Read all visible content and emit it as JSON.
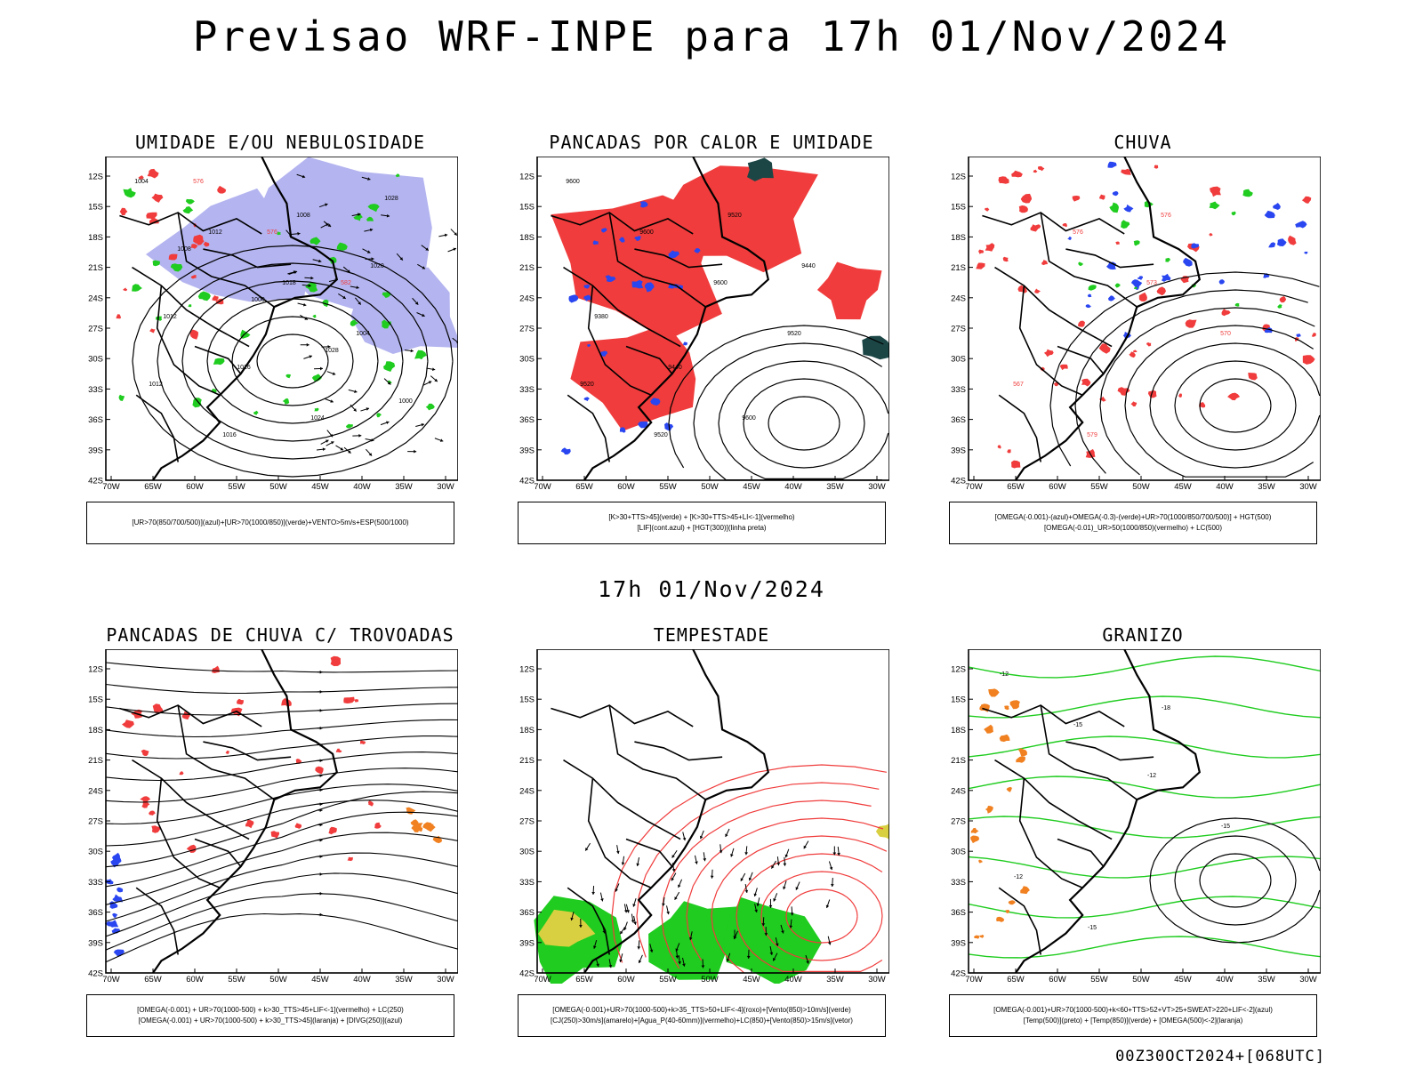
{
  "title": "Previsao WRF-INPE  para 17h 01/Nov/2024",
  "subtitle": "17h 01/Nov/2024",
  "footer": "00Z30OCT2024+[068UTC]",
  "axes": {
    "lat_labels": [
      "12S",
      "15S",
      "18S",
      "21S",
      "24S",
      "27S",
      "30S",
      "33S",
      "36S",
      "39S",
      "42S"
    ],
    "lon_labels": [
      "70W",
      "65W",
      "60W",
      "55W",
      "50W",
      "45W",
      "40W",
      "35W",
      "30W"
    ]
  },
  "colors": {
    "red": "#f03c3c",
    "green": "#1fcc1f",
    "blue": "#2a46f0",
    "lavender": "#b4b4f0",
    "darkteal": "#1c4646",
    "orange": "#f08020",
    "yellow": "#d8d040"
  },
  "panels": [
    {
      "title": "UMIDADE E/OU NEBULOSIDADE",
      "legend": [
        "[UR>70(850/700/500)](azul)+[UR>70(1000/850)](verde)+VENTO>5m/s+ESP(500/1000)"
      ],
      "contour_labels": [
        "1004",
        "1012",
        "1018",
        "1004",
        "1012",
        "1016",
        "1008",
        "1020",
        "1012",
        "1016",
        "1024",
        "1028",
        "1008",
        "1000",
        "1028",
        "1000",
        "576",
        "576",
        "582"
      ]
    },
    {
      "title": "PANCADAS POR CALOR E UMIDADE",
      "legend": [
        "[K>30+TTS>45](verde) + [K>30+TTS>45+LI<-1](vermelho)",
        "[LIF](cont.azul) + [HGT(300)](linha preta)"
      ],
      "contour_labels": [
        "9600",
        "9600",
        "9600",
        "9520",
        "9520",
        "9520",
        "9520",
        "9440",
        "9380",
        "9440",
        "9600"
      ]
    },
    {
      "title": "CHUVA",
      "legend": [
        "[OMEGA(-0.001)-(azul)+OMEGA(-0.3)-(verde)+UR>70(1000/850/700/500)] + HGT(500)",
        "[OMEGA(-0.01)_UR>50(1000/850)(vermelho) + LC(500)"
      ],
      "contour_labels": [
        "579",
        "576",
        "573",
        "570",
        "567",
        "579",
        "576"
      ]
    },
    {
      "title": "PANCADAS DE CHUVA C/ TROVOADAS",
      "legend": [
        "[OMEGA(-0.001) + UR>70(1000-500) + k>30_TTS>45+LIF<-1](vermelho) + LC(250)",
        "[OMEGA(-0.001) + UR>70(1000-500) + k>30_TTS>45](laranja) + [DIVG(250)](azul)"
      ],
      "contour_labels": []
    },
    {
      "title": "TEMPESTADE",
      "legend": [
        "[OMEGA(-0.001)+UR>70(1000-500)+k>35_TTS>50+LIF<-4](roxo)+[Vento(850)>10m/s](verde)",
        "[CJ(250)>30m/s](amarelo)+[Agua_P(40-60mm)](vermelho)+LC(850)+[Vento(850)>15m/s](vetor)"
      ],
      "contour_labels": []
    },
    {
      "title": "GRANIZO",
      "legend": [
        "[OMEGA(-0.001)+UR>70(1000-500)+k<60+TTS>52+VT>25+SWEAT>220+LIF<-2](azul)",
        "[Temp(500)](preto) + [Temp(850)](verde) + [OMEGA(500)<-2](laranja)"
      ],
      "contour_labels": [
        "-12",
        "-15",
        "-12",
        "-15",
        "-12",
        "-15",
        "-18"
      ]
    }
  ]
}
